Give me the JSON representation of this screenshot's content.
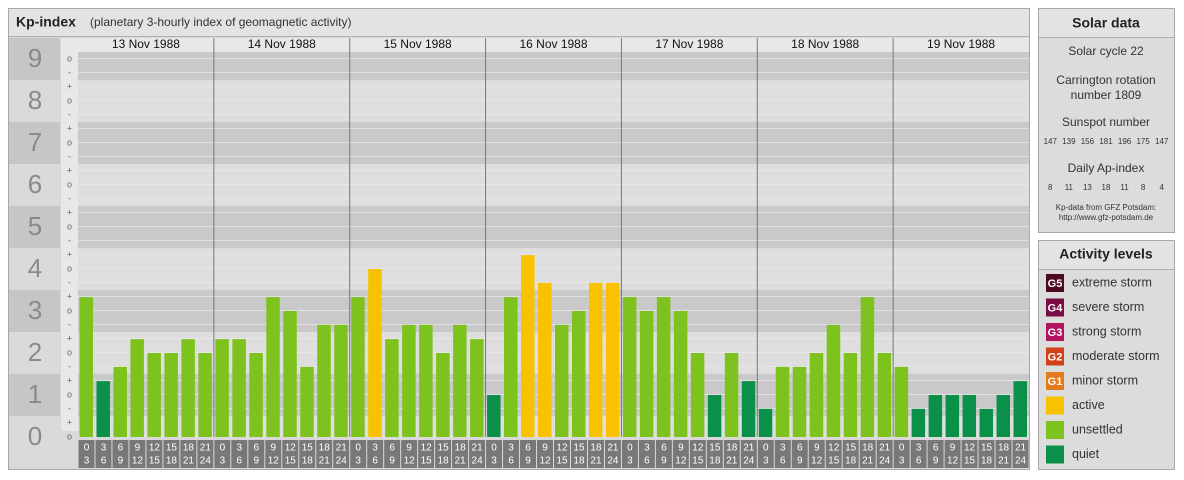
{
  "chart_data": {
    "type": "bar",
    "title": "Kp-index",
    "subtitle": "(planetary 3-hourly index of geomagnetic activity)",
    "days": [
      "13 Nov 1988",
      "14 Nov 1988",
      "15 Nov 1988",
      "16 Nov 1988",
      "17 Nov 1988",
      "18 Nov 1988",
      "19 Nov 1988"
    ],
    "hours": [
      {
        "start": 0,
        "end": 3
      },
      {
        "start": 3,
        "end": 6
      },
      {
        "start": 6,
        "end": 9
      },
      {
        "start": 9,
        "end": 12
      },
      {
        "start": 12,
        "end": 15
      },
      {
        "start": 15,
        "end": 18
      },
      {
        "start": 18,
        "end": 21
      },
      {
        "start": 21,
        "end": 24
      }
    ],
    "values": [
      3.33,
      1.33,
      1.67,
      2.33,
      2,
      2,
      2.33,
      2,
      2.33,
      2.33,
      2,
      3.33,
      3,
      1.67,
      2.67,
      2.67,
      3.33,
      4,
      2.33,
      2.67,
      2.67,
      2,
      2.67,
      2.33,
      1,
      3.33,
      4.33,
      3.67,
      2.67,
      3,
      3.67,
      3.67,
      3.33,
      3,
      3.33,
      3,
      2,
      1,
      2,
      1.33,
      0.67,
      1.67,
      1.67,
      2,
      2.67,
      2,
      3.33,
      2,
      1.67,
      0.67,
      1,
      1,
      1,
      0.67,
      1,
      1.33
    ],
    "colors": [
      "#7ec21d",
      "#0a9048",
      "#7ec21d",
      "#7ec21d",
      "#7ec21d",
      "#7ec21d",
      "#7ec21d",
      "#7ec21d",
      "#7ec21d",
      "#7ec21d",
      "#7ec21d",
      "#7ec21d",
      "#7ec21d",
      "#7ec21d",
      "#7ec21d",
      "#7ec21d",
      "#7ec21d",
      "#f8c200",
      "#7ec21d",
      "#7ec21d",
      "#7ec21d",
      "#7ec21d",
      "#7ec21d",
      "#7ec21d",
      "#0a9048",
      "#7ec21d",
      "#f8c200",
      "#f8c200",
      "#7ec21d",
      "#7ec21d",
      "#f8c200",
      "#f8c200",
      "#7ec21d",
      "#7ec21d",
      "#7ec21d",
      "#7ec21d",
      "#7ec21d",
      "#0a9048",
      "#7ec21d",
      "#0a9048",
      "#0a9048",
      "#7ec21d",
      "#7ec21d",
      "#7ec21d",
      "#7ec21d",
      "#7ec21d",
      "#7ec21d",
      "#7ec21d",
      "#7ec21d",
      "#0a9048",
      "#0a9048",
      "#0a9048",
      "#0a9048",
      "#0a9048",
      "#0a9048",
      "#0a9048"
    ],
    "ylim": [
      0,
      9.5
    ],
    "yticks": [
      0,
      1,
      2,
      3,
      4,
      5,
      6,
      7,
      8,
      9
    ],
    "minor_tick_labels": {
      "minus": "-",
      "zero": "o",
      "plus": "+"
    },
    "grid": true
  },
  "solar_data": {
    "title": "Solar data",
    "cycle": "Solar cycle 22",
    "carrington": [
      "Carrington rotation",
      "number 1809"
    ],
    "sunspot_label": "Sunspot number",
    "sunspots": [
      147,
      139,
      156,
      181,
      196,
      175,
      147
    ],
    "ap_label": "Daily Ap-index",
    "ap": [
      8,
      11,
      13,
      18,
      11,
      8,
      4
    ],
    "source": "Kp-data from GFZ Potsdam:",
    "source_url": "http://www.gfz-potsdam.de"
  },
  "activity_levels": {
    "title": "Activity levels",
    "items": [
      {
        "code": "G5",
        "name": "extreme storm",
        "color": "#4c0a22"
      },
      {
        "code": "G4",
        "name": "severe storm",
        "color": "#7a0c44"
      },
      {
        "code": "G3",
        "name": "strong storm",
        "color": "#b3125f"
      },
      {
        "code": "G2",
        "name": "moderate storm",
        "color": "#d2401a"
      },
      {
        "code": "G1",
        "name": "minor storm",
        "color": "#e47a1c"
      },
      {
        "name": "active",
        "color": "#f8c200"
      },
      {
        "name": "unsettled",
        "color": "#7ec21d"
      },
      {
        "name": "quiet",
        "color": "#0a9048"
      }
    ]
  }
}
